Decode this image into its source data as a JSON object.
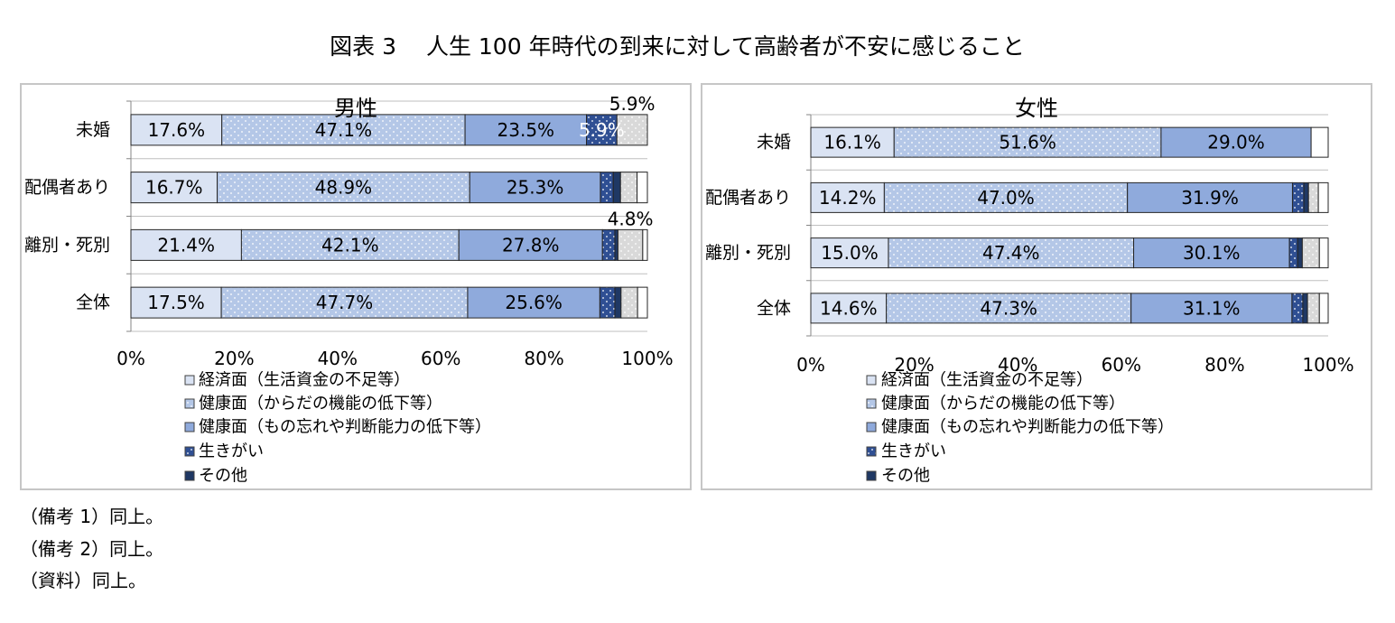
{
  "title": "図表 3　 人生 100 年時代の到来に対して高齢者が不安に感じること",
  "notes": [
    "（備考 1）同上。",
    "（備考 2）同上。",
    "（資料）同上。"
  ],
  "chart_data": [
    {
      "type": "bar",
      "orientation": "horizontal",
      "stacked": true,
      "title": "男性",
      "categories": [
        "未婚",
        "配偶者あり",
        "離別・死別",
        "全体"
      ],
      "xlim": [
        0,
        100
      ],
      "x_ticks": [
        0,
        20,
        40,
        60,
        80,
        100
      ],
      "x_tick_labels": [
        "0%",
        "20%",
        "40%",
        "60%",
        "80%",
        "100%"
      ],
      "grid": true,
      "legend": "bottom",
      "series": [
        {
          "name": "経済面（生活資金の不足等）",
          "values": [
            17.6,
            16.7,
            21.4,
            17.5
          ],
          "labels": [
            "17.6%",
            "16.7%",
            "21.4%",
            "17.5%"
          ],
          "color": "#dae3f3",
          "pattern": "solid"
        },
        {
          "name": "健康面（からだの機能の低下等）",
          "values": [
            47.1,
            48.9,
            42.1,
            47.7
          ],
          "labels": [
            "47.1%",
            "48.9%",
            "42.1%",
            "47.7%"
          ],
          "color": "#b4c7e7",
          "pattern": "dots"
        },
        {
          "name": "健康面（もの忘れや判断能力の低下等）",
          "values": [
            23.5,
            25.3,
            27.8,
            25.6
          ],
          "labels": [
            "23.5%",
            "25.3%",
            "27.8%",
            "25.6%"
          ],
          "color": "#8faadc",
          "pattern": "solid"
        },
        {
          "name": "生きがい",
          "values": [
            5.9,
            2.5,
            2.4,
            2.9
          ],
          "labels": [
            "5.9%",
            null,
            null,
            null
          ],
          "label_color": "#ffffff",
          "color": "#2f4f93",
          "pattern": "dots"
        },
        {
          "name": "その他",
          "values": [
            0,
            1.4,
            0.6,
            1.2
          ],
          "color": "#1f3864",
          "pattern": "solid"
        },
        {
          "values": [
            5.9,
            3.2,
            4.8,
            3.2
          ],
          "labels": [
            "5.9%",
            null,
            "4.8%",
            null
          ],
          "label_position": "above",
          "color": "#d9d9d9",
          "pattern": "dots"
        },
        {
          "values": [
            0,
            2.0,
            0.9,
            1.9
          ],
          "color": "#ffffff",
          "pattern": "solid"
        }
      ]
    },
    {
      "type": "bar",
      "orientation": "horizontal",
      "stacked": true,
      "title": "女性",
      "categories": [
        "未婚",
        "配偶者あり",
        "離別・死別",
        "全体"
      ],
      "xlim": [
        0,
        100
      ],
      "x_ticks": [
        0,
        20,
        40,
        60,
        80,
        100
      ],
      "x_tick_labels": [
        "0%",
        "20%",
        "40%",
        "60%",
        "80%",
        "100%"
      ],
      "grid": true,
      "legend": "bottom",
      "series": [
        {
          "name": "経済面（生活資金の不足等）",
          "values": [
            16.1,
            14.2,
            15.0,
            14.6
          ],
          "labels": [
            "16.1%",
            "14.2%",
            "15.0%",
            "14.6%"
          ],
          "color": "#dae3f3",
          "pattern": "solid"
        },
        {
          "name": "健康面（からだの機能の低下等）",
          "values": [
            51.6,
            47.0,
            47.4,
            47.3
          ],
          "labels": [
            "51.6%",
            "47.0%",
            "47.4%",
            "47.3%"
          ],
          "color": "#b4c7e7",
          "pattern": "dots"
        },
        {
          "name": "健康面（もの忘れや判断能力の低下等）",
          "values": [
            29.0,
            31.9,
            30.1,
            31.1
          ],
          "labels": [
            "29.0%",
            "31.9%",
            "30.1%",
            "31.1%"
          ],
          "color": "#8faadc",
          "pattern": "solid"
        },
        {
          "name": "生きがい",
          "values": [
            0,
            2.2,
            1.6,
            2.1
          ],
          "color": "#2f4f93",
          "pattern": "dots"
        },
        {
          "name": "その他",
          "values": [
            0,
            0.9,
            0.9,
            0.9
          ],
          "color": "#1f3864",
          "pattern": "solid"
        },
        {
          "values": [
            0,
            1.9,
            3.3,
            2.3
          ],
          "color": "#d9d9d9",
          "pattern": "dots"
        },
        {
          "values": [
            3.3,
            1.9,
            1.7,
            1.7
          ],
          "color": "#ffffff",
          "pattern": "solid"
        }
      ]
    }
  ]
}
